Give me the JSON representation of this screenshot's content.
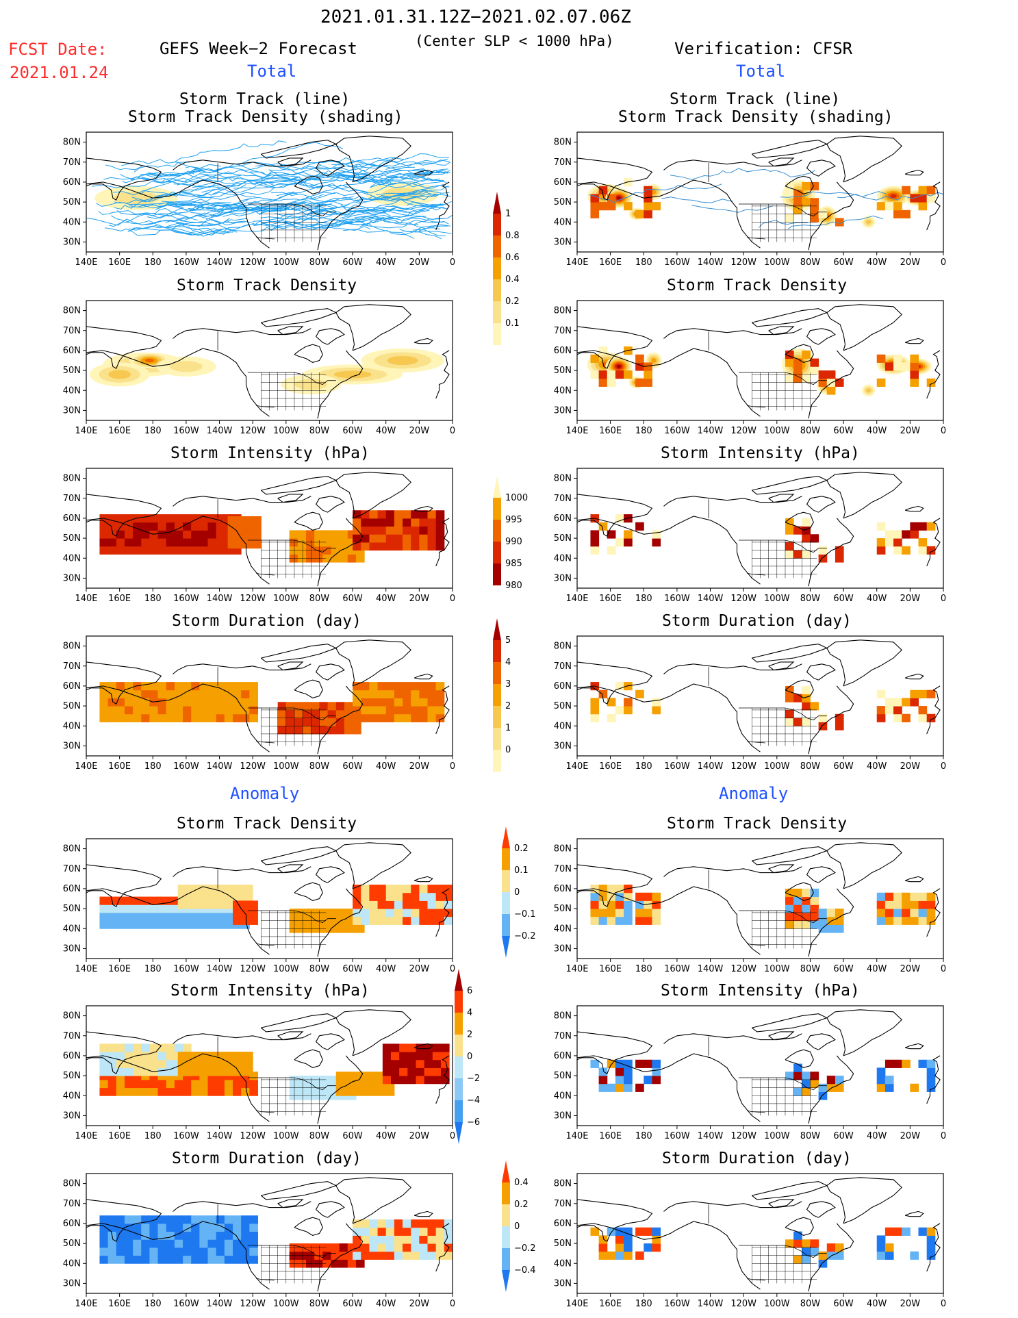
{
  "header": {
    "period": "2021.01.31.12Z−2021.02.07.06Z",
    "fcst_label": "FCST Date:",
    "fcst_date": "2021.01.24",
    "left_title": "GEFS Week−2 Forecast",
    "criterion": "(Center SLP < 1000 hPa)",
    "right_title": "Verification: CFSR",
    "total_left": "Total",
    "total_right": "Total",
    "anomaly_left": "Anomaly",
    "anomaly_right": "Anomaly"
  },
  "axes": {
    "yticks": [
      "80N",
      "70N",
      "60N",
      "50N",
      "40N",
      "30N"
    ],
    "xticks": [
      "140E",
      "160E",
      "180",
      "160W",
      "140W",
      "120W",
      "100W",
      "80W",
      "60W",
      "40W",
      "20W",
      "0"
    ]
  },
  "panels": [
    {
      "id": "fc-track",
      "title1": "Storm Track (line)",
      "title2": "Storm Track Density (shading)"
    },
    {
      "id": "ob-track",
      "title1": "Storm Track (line)",
      "title2": "Storm Track Density (shading)"
    },
    {
      "id": "fc-dens",
      "title1": "Storm Track Density"
    },
    {
      "id": "ob-dens",
      "title1": "Storm Track Density"
    },
    {
      "id": "fc-int",
      "title1": "Storm Intensity (hPa)"
    },
    {
      "id": "ob-int",
      "title1": "Storm Intensity (hPa)"
    },
    {
      "id": "fc-dur",
      "title1": "Storm Duration (day)"
    },
    {
      "id": "ob-dur",
      "title1": "Storm Duration (day)"
    },
    {
      "id": "fa-dens",
      "title1": "Storm Track Density"
    },
    {
      "id": "oa-dens",
      "title1": "Storm Track Density"
    },
    {
      "id": "fa-int",
      "title1": "Storm Intensity (hPa)"
    },
    {
      "id": "oa-int",
      "title1": "Storm Intensity (hPa)"
    },
    {
      "id": "fa-dur",
      "title1": "Storm Duration (day)"
    },
    {
      "id": "oa-dur",
      "title1": "Storm Duration (day)"
    }
  ],
  "colorbars": [
    {
      "id": "cb-density",
      "labels": [
        "1",
        "0.8",
        "0.6",
        "0.4",
        "0.2",
        "0.1"
      ],
      "colors": [
        "#a50000",
        "#dc2800",
        "#f06400",
        "#f5a000",
        "#f7c850",
        "#fae18c",
        "#fff5b9"
      ]
    },
    {
      "id": "cb-intensity",
      "labels": [
        "1000",
        "995",
        "990",
        "985",
        "980"
      ],
      "colors": [
        "#fff5b9",
        "#f5a000",
        "#f06400",
        "#dc2800",
        "#a50000"
      ]
    },
    {
      "id": "cb-duration",
      "labels": [
        "5",
        "4",
        "3",
        "2",
        "1",
        "0"
      ],
      "colors": [
        "#a50000",
        "#dc2800",
        "#f06400",
        "#f5a000",
        "#f7c850",
        "#fae18c",
        "#fff5b9"
      ]
    },
    {
      "id": "cb-anom-dens",
      "labels": [
        "0.2",
        "0.1",
        "0",
        "−0.1",
        "−0.2"
      ],
      "colors": [
        "#ff3c00",
        "#f5a000",
        "#fae18c",
        "#bde6f6",
        "#64b4f5",
        "#1e78f0"
      ]
    },
    {
      "id": "cb-anom-int",
      "labels": [
        "6",
        "4",
        "2",
        "0",
        "−2",
        "−4",
        "−6"
      ],
      "colors": [
        "#a50000",
        "#ff3c00",
        "#f5a000",
        "#fae18c",
        "#bde6f6",
        "#8cc8f5",
        "#46a0f0",
        "#1e78f0"
      ]
    },
    {
      "id": "cb-anom-dur",
      "labels": [
        "0.4",
        "0.2",
        "0",
        "−0.2",
        "−0.4"
      ],
      "colors": [
        "#ff3c00",
        "#f5a000",
        "#fae18c",
        "#bde6f6",
        "#64b4f5",
        "#1e78f0"
      ]
    }
  ]
}
